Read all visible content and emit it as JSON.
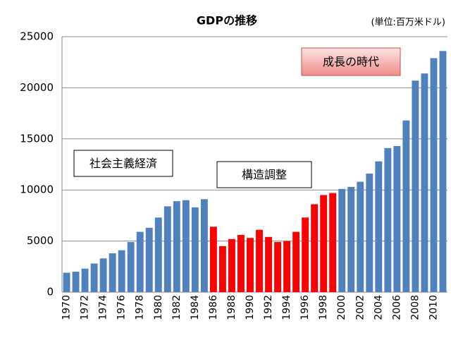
{
  "chart_data": {
    "type": "bar",
    "title": "GDPの推移",
    "subtitle": "(単位:百万米ドル)",
    "categories": [
      "1970",
      null,
      "1972",
      null,
      "1974",
      null,
      "1976",
      null,
      "1978",
      null,
      "1980",
      null,
      "1982",
      null,
      "1984",
      null,
      "1986",
      null,
      "1988",
      null,
      "1990",
      null,
      "1992",
      null,
      "1994",
      null,
      "1996",
      null,
      "1998",
      null,
      "2000",
      null,
      "2002",
      null,
      "2004",
      null,
      "2006",
      null,
      "2008",
      null,
      "2010",
      null
    ],
    "values": [
      1900,
      2000,
      2300,
      2800,
      3300,
      3800,
      4100,
      4900,
      5900,
      6300,
      7300,
      8400,
      8900,
      9000,
      8300,
      9100,
      6400,
      4500,
      5200,
      5600,
      5300,
      6100,
      5400,
      4900,
      5000,
      5900,
      7300,
      8600,
      9500,
      9700,
      10100,
      10300,
      10800,
      11600,
      12800,
      14100,
      14300,
      16800,
      20700,
      21400,
      22900,
      23600
    ],
    "colors": [
      "#4f81bd",
      "#4f81bd",
      "#4f81bd",
      "#4f81bd",
      "#4f81bd",
      "#4f81bd",
      "#4f81bd",
      "#4f81bd",
      "#4f81bd",
      "#4f81bd",
      "#4f81bd",
      "#4f81bd",
      "#4f81bd",
      "#4f81bd",
      "#4f81bd",
      "#4f81bd",
      "#ff0000",
      "#ff0000",
      "#ff0000",
      "#ff0000",
      "#ff0000",
      "#ff0000",
      "#ff0000",
      "#ff0000",
      "#ff0000",
      "#ff0000",
      "#ff0000",
      "#ff0000",
      "#ff0000",
      "#ff0000",
      "#4f81bd",
      "#4f81bd",
      "#4f81bd",
      "#4f81bd",
      "#4f81bd",
      "#4f81bd",
      "#4f81bd",
      "#4f81bd",
      "#4f81bd",
      "#4f81bd",
      "#4f81bd",
      "#4f81bd"
    ],
    "ylim": [
      0,
      25000
    ],
    "yticks": [
      0,
      5000,
      10000,
      15000,
      20000,
      25000
    ],
    "grid": true,
    "annotations": [
      "社会主義経済",
      "構造調整",
      "成長の時代"
    ]
  }
}
